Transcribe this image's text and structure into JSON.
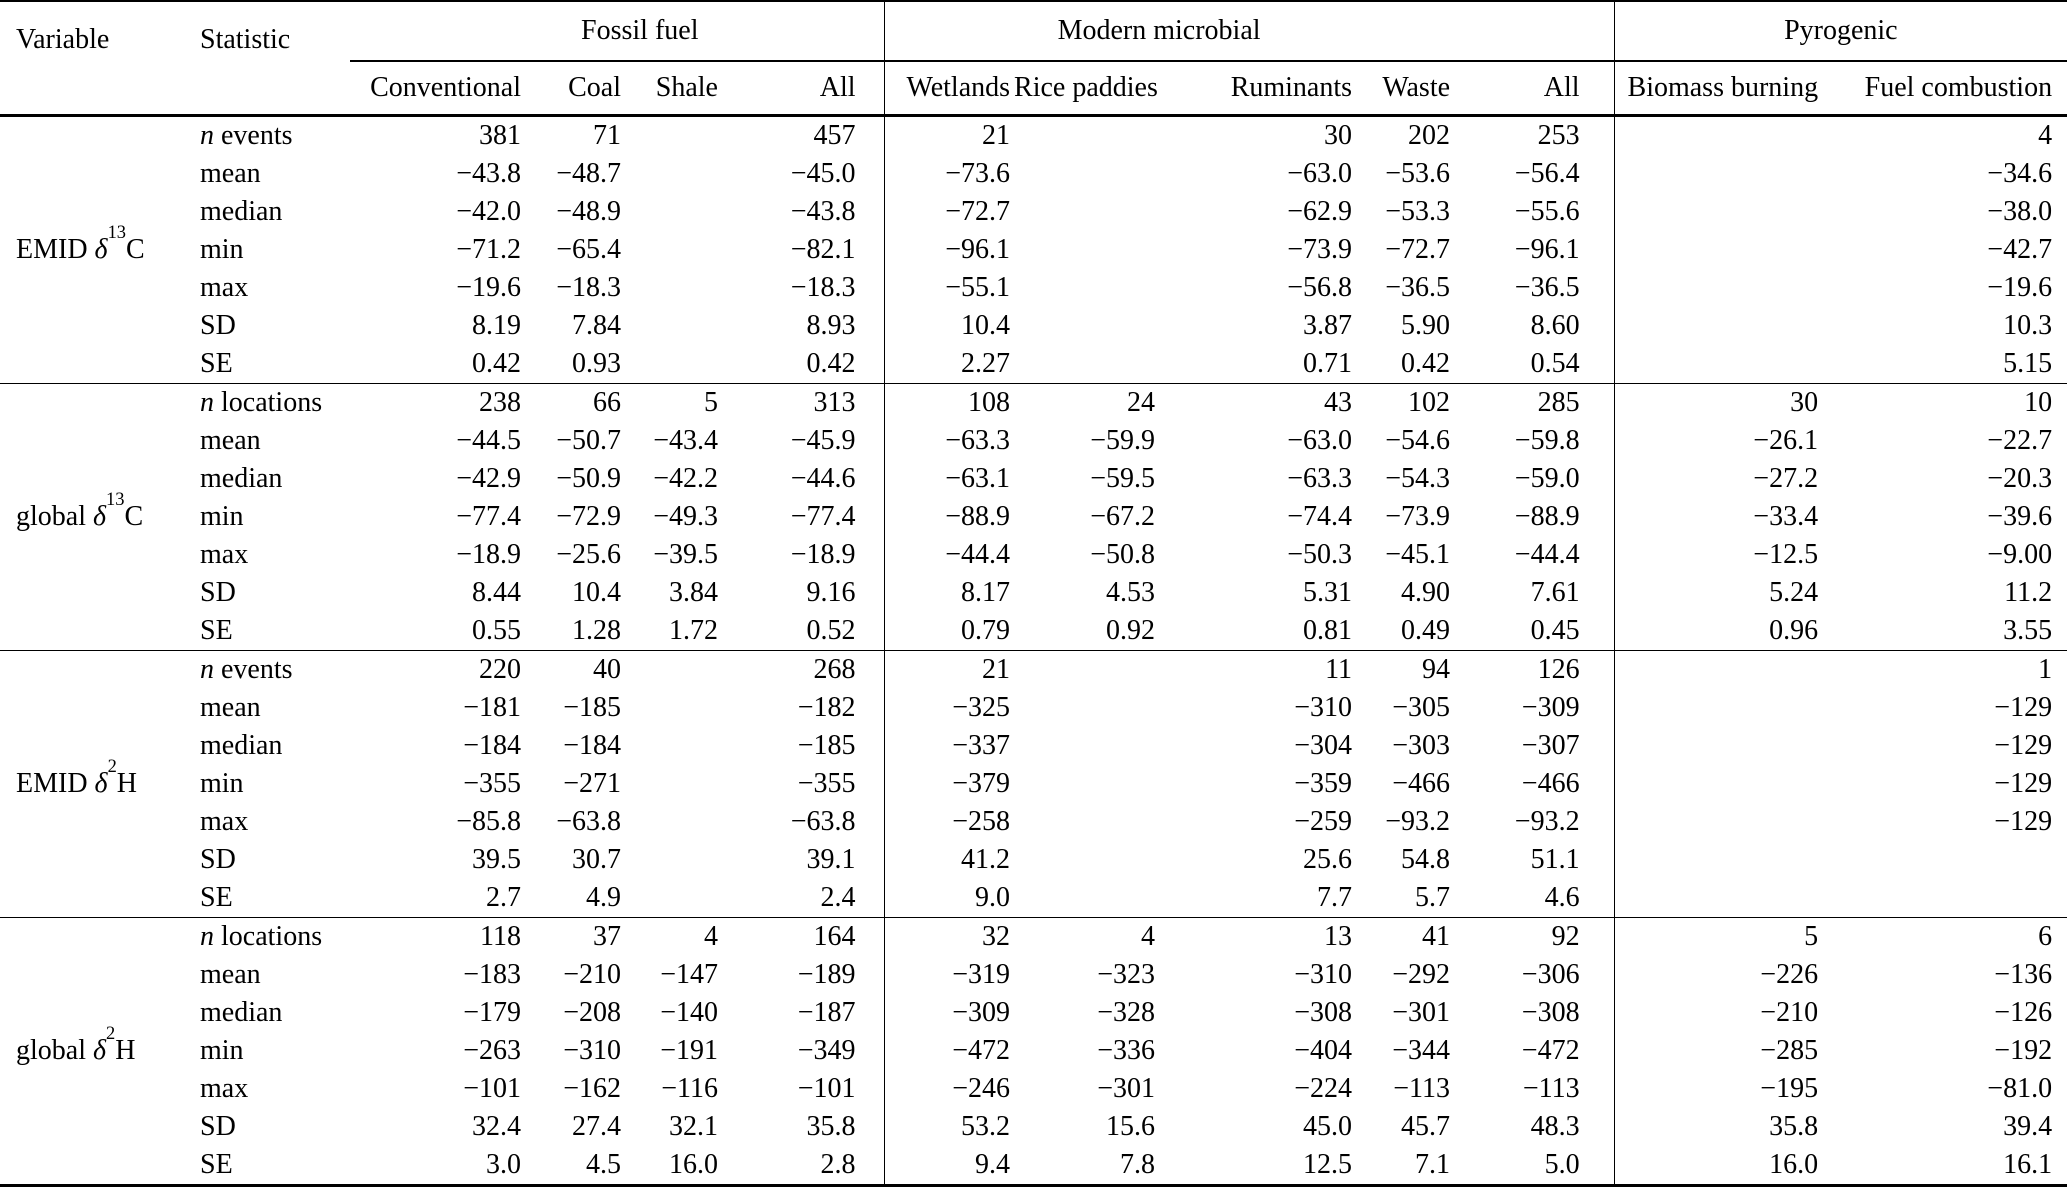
{
  "table": {
    "corner": {
      "variable": "Variable",
      "statistic": "Statistic"
    },
    "col_groups": [
      {
        "label": "Fossil fuel",
        "cols": [
          "Conventional",
          "Coal",
          "Shale",
          "All"
        ]
      },
      {
        "label": "Modern microbial",
        "cols": [
          "Wetlands",
          "Rice paddies",
          "Ruminants",
          "Waste",
          "All"
        ]
      },
      {
        "label": "Pyrogenic",
        "cols": [
          "Biomass burning",
          "Fuel combustion"
        ]
      }
    ],
    "row_groups": [
      {
        "variable": {
          "prefix": "EMID ",
          "symbol": "δ",
          "sup": "13",
          "base": "C"
        },
        "rows": [
          {
            "stat": "n events",
            "values": [
              "381",
              "71",
              "",
              "457",
              "21",
              "",
              "30",
              "202",
              "253",
              "",
              "4"
            ]
          },
          {
            "stat": "mean",
            "values": [
              "−43.8",
              "−48.7",
              "",
              "−45.0",
              "−73.6",
              "",
              "−63.0",
              "−53.6",
              "−56.4",
              "",
              "−34.6"
            ]
          },
          {
            "stat": "median",
            "values": [
              "−42.0",
              "−48.9",
              "",
              "−43.8",
              "−72.7",
              "",
              "−62.9",
              "−53.3",
              "−55.6",
              "",
              "−38.0"
            ]
          },
          {
            "stat": "min",
            "values": [
              "−71.2",
              "−65.4",
              "",
              "−82.1",
              "−96.1",
              "",
              "−73.9",
              "−72.7",
              "−96.1",
              "",
              "−42.7"
            ]
          },
          {
            "stat": "max",
            "values": [
              "−19.6",
              "−18.3",
              "",
              "−18.3",
              "−55.1",
              "",
              "−56.8",
              "−36.5",
              "−36.5",
              "",
              "−19.6"
            ]
          },
          {
            "stat": "SD",
            "values": [
              "8.19",
              "7.84",
              "",
              "8.93",
              "10.4",
              "",
              "3.87",
              "5.90",
              "8.60",
              "",
              "10.3"
            ]
          },
          {
            "stat": "SE",
            "values": [
              "0.42",
              "0.93",
              "",
              "0.42",
              "2.27",
              "",
              "0.71",
              "0.42",
              "0.54",
              "",
              "5.15"
            ]
          }
        ]
      },
      {
        "variable": {
          "prefix": "global ",
          "symbol": "δ",
          "sup": "13",
          "base": "C"
        },
        "rows": [
          {
            "stat": "n locations",
            "values": [
              "238",
              "66",
              "5",
              "313",
              "108",
              "24",
              "43",
              "102",
              "285",
              "30",
              "10"
            ]
          },
          {
            "stat": "mean",
            "values": [
              "−44.5",
              "−50.7",
              "−43.4",
              "−45.9",
              "−63.3",
              "−59.9",
              "−63.0",
              "−54.6",
              "−59.8",
              "−26.1",
              "−22.7"
            ]
          },
          {
            "stat": "median",
            "values": [
              "−42.9",
              "−50.9",
              "−42.2",
              "−44.6",
              "−63.1",
              "−59.5",
              "−63.3",
              "−54.3",
              "−59.0",
              "−27.2",
              "−20.3"
            ]
          },
          {
            "stat": "min",
            "values": [
              "−77.4",
              "−72.9",
              "−49.3",
              "−77.4",
              "−88.9",
              "−67.2",
              "−74.4",
              "−73.9",
              "−88.9",
              "−33.4",
              "−39.6"
            ]
          },
          {
            "stat": "max",
            "values": [
              "−18.9",
              "−25.6",
              "−39.5",
              "−18.9",
              "−44.4",
              "−50.8",
              "−50.3",
              "−45.1",
              "−44.4",
              "−12.5",
              "−9.00"
            ]
          },
          {
            "stat": "SD",
            "values": [
              "8.44",
              "10.4",
              "3.84",
              "9.16",
              "8.17",
              "4.53",
              "5.31",
              "4.90",
              "7.61",
              "5.24",
              "11.2"
            ]
          },
          {
            "stat": "SE",
            "values": [
              "0.55",
              "1.28",
              "1.72",
              "0.52",
              "0.79",
              "0.92",
              "0.81",
              "0.49",
              "0.45",
              "0.96",
              "3.55"
            ]
          }
        ]
      },
      {
        "variable": {
          "prefix": "EMID ",
          "symbol": "δ",
          "sup": "2",
          "base": "H"
        },
        "rows": [
          {
            "stat": "n events",
            "values": [
              "220",
              "40",
              "",
              "268",
              "21",
              "",
              "11",
              "94",
              "126",
              "",
              "1"
            ]
          },
          {
            "stat": "mean",
            "values": [
              "−181",
              "−185",
              "",
              "−182",
              "−325",
              "",
              "−310",
              "−305",
              "−309",
              "",
              "−129"
            ]
          },
          {
            "stat": "median",
            "values": [
              "−184",
              "−184",
              "",
              "−185",
              "−337",
              "",
              "−304",
              "−303",
              "−307",
              "",
              "−129"
            ]
          },
          {
            "stat": "min",
            "values": [
              "−355",
              "−271",
              "",
              "−355",
              "−379",
              "",
              "−359",
              "−466",
              "−466",
              "",
              "−129"
            ]
          },
          {
            "stat": "max",
            "values": [
              "−85.8",
              "−63.8",
              "",
              "−63.8",
              "−258",
              "",
              "−259",
              "−93.2",
              "−93.2",
              "",
              "−129"
            ]
          },
          {
            "stat": "SD",
            "values": [
              "39.5",
              "30.7",
              "",
              "39.1",
              "41.2",
              "",
              "25.6",
              "54.8",
              "51.1",
              "",
              ""
            ]
          },
          {
            "stat": "SE",
            "values": [
              "2.7",
              "4.9",
              "",
              "2.4",
              "9.0",
              "",
              "7.7",
              "5.7",
              "4.6",
              "",
              ""
            ]
          }
        ]
      },
      {
        "variable": {
          "prefix": "global ",
          "symbol": "δ",
          "sup": "2",
          "base": "H"
        },
        "rows": [
          {
            "stat": "n locations",
            "values": [
              "118",
              "37",
              "4",
              "164",
              "32",
              "4",
              "13",
              "41",
              "92",
              "5",
              "6"
            ]
          },
          {
            "stat": "mean",
            "values": [
              "−183",
              "−210",
              "−147",
              "−189",
              "−319",
              "−323",
              "−310",
              "−292",
              "−306",
              "−226",
              "−136"
            ]
          },
          {
            "stat": "median",
            "values": [
              "−179",
              "−208",
              "−140",
              "−187",
              "−309",
              "−328",
              "−308",
              "−301",
              "−308",
              "−210",
              "−126"
            ]
          },
          {
            "stat": "min",
            "values": [
              "−263",
              "−310",
              "−191",
              "−349",
              "−472",
              "−336",
              "−404",
              "−344",
              "−472",
              "−285",
              "−192"
            ]
          },
          {
            "stat": "max",
            "values": [
              "−101",
              "−162",
              "−116",
              "−101",
              "−246",
              "−301",
              "−224",
              "−113",
              "−113",
              "−195",
              "−81.0"
            ]
          },
          {
            "stat": "SD",
            "values": [
              "32.4",
              "27.4",
              "32.1",
              "35.8",
              "53.2",
              "15.6",
              "45.0",
              "45.7",
              "48.3",
              "35.8",
              "39.4"
            ]
          },
          {
            "stat": "SE",
            "values": [
              "3.0",
              "4.5",
              "16.0",
              "2.8",
              "9.4",
              "7.8",
              "12.5",
              "7.1",
              "5.0",
              "16.0",
              "16.1"
            ]
          }
        ]
      }
    ]
  }
}
